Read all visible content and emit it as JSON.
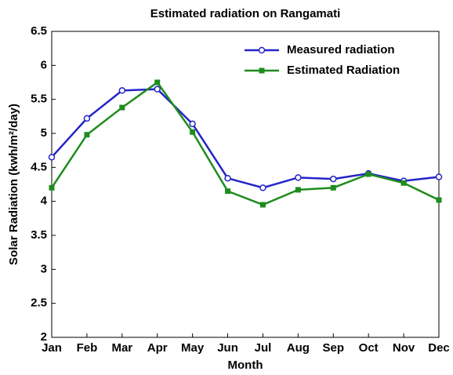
{
  "chart_data": {
    "type": "line",
    "title": "Estimated radiation on Rangamati",
    "x_label": "Month",
    "y_label": "Solar Radiation (kwh/m²/day)",
    "categories": [
      "Jan",
      "Feb",
      "Mar",
      "Apr",
      "May",
      "Jun",
      "Jul",
      "Aug",
      "Sep",
      "Oct",
      "Nov",
      "Dec"
    ],
    "series": [
      {
        "name": "Measured radiation",
        "color": "#2424c8",
        "marker": "circle",
        "values": [
          4.65,
          5.22,
          5.63,
          5.65,
          5.14,
          4.34,
          4.2,
          4.35,
          4.33,
          4.41,
          4.3,
          4.36
        ]
      },
      {
        "name": "Estimated Radiation",
        "color": "#1e8c1e",
        "marker": "square",
        "values": [
          4.2,
          4.98,
          5.38,
          5.75,
          5.02,
          4.15,
          3.95,
          4.17,
          4.2,
          4.4,
          4.27,
          4.02
        ]
      }
    ],
    "ylim": [
      2,
      6.5
    ],
    "yticks": [
      2,
      2.5,
      3,
      3.5,
      4,
      4.5,
      5,
      5.5,
      6,
      6.5
    ],
    "legend": "upper right",
    "grid": false
  }
}
